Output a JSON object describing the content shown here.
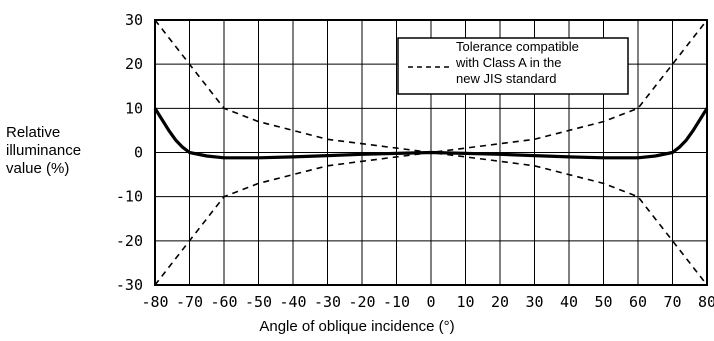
{
  "chart_data": {
    "type": "line",
    "xlabel": "Angle of oblique incidence (°)",
    "ylabel": [
      "Relative",
      "illuminance",
      "value (%)"
    ],
    "xlim": [
      -80,
      80
    ],
    "ylim": [
      -30,
      30
    ],
    "xticks": [
      "-80",
      "-70",
      "-60",
      "-50",
      "-40",
      "-30",
      "-20",
      "-10",
      "0",
      "10",
      "20",
      "30",
      "40",
      "50",
      "60",
      "70",
      "80"
    ],
    "yticks": [
      "30",
      "20",
      "10",
      "0",
      "-10",
      "-20",
      "-30"
    ],
    "grid": true,
    "legend": {
      "position": "top-right",
      "lines": [
        "Tolerance compatible",
        "with Class A in the",
        "new JIS standard"
      ]
    },
    "series": [
      {
        "style": "solid-thick",
        "x": [
          -80,
          -78,
          -76,
          -74,
          -72,
          -70,
          -65,
          -60,
          -50,
          -40,
          -30,
          -20,
          -10,
          0,
          10,
          20,
          30,
          40,
          50,
          60,
          65,
          70,
          72,
          74,
          76,
          78,
          80
        ],
        "y": [
          10,
          7.5,
          5,
          2.8,
          1.2,
          0,
          -0.8,
          -1.2,
          -1.2,
          -1,
          -0.7,
          -0.4,
          -0.2,
          0,
          -0.2,
          -0.4,
          -0.7,
          -1,
          -1.2,
          -1.2,
          -0.8,
          0,
          1.2,
          2.8,
          5,
          7.5,
          10
        ]
      },
      {
        "name": "Tolerance compatible with Class A in the new JIS standard",
        "style": "dashed",
        "x": [
          -80,
          -70,
          -60,
          -50,
          -40,
          -30,
          -20,
          -10,
          0,
          10,
          20,
          30,
          40,
          50,
          60,
          70,
          80
        ],
        "y": [
          30,
          20,
          10,
          7,
          5,
          3,
          2,
          1,
          0,
          -1,
          -2,
          -3,
          -5,
          -7,
          -10,
          -20,
          -30
        ]
      },
      {
        "style": "dashed",
        "x": [
          -80,
          -70,
          -60,
          -50,
          -40,
          -30,
          -20,
          -10,
          0,
          10,
          20,
          30,
          40,
          50,
          60,
          70,
          80
        ],
        "y": [
          -30,
          -20,
          -10,
          -7,
          -5,
          -3,
          -2,
          -1,
          0,
          1,
          2,
          3,
          5,
          7,
          10,
          20,
          30
        ]
      }
    ]
  }
}
